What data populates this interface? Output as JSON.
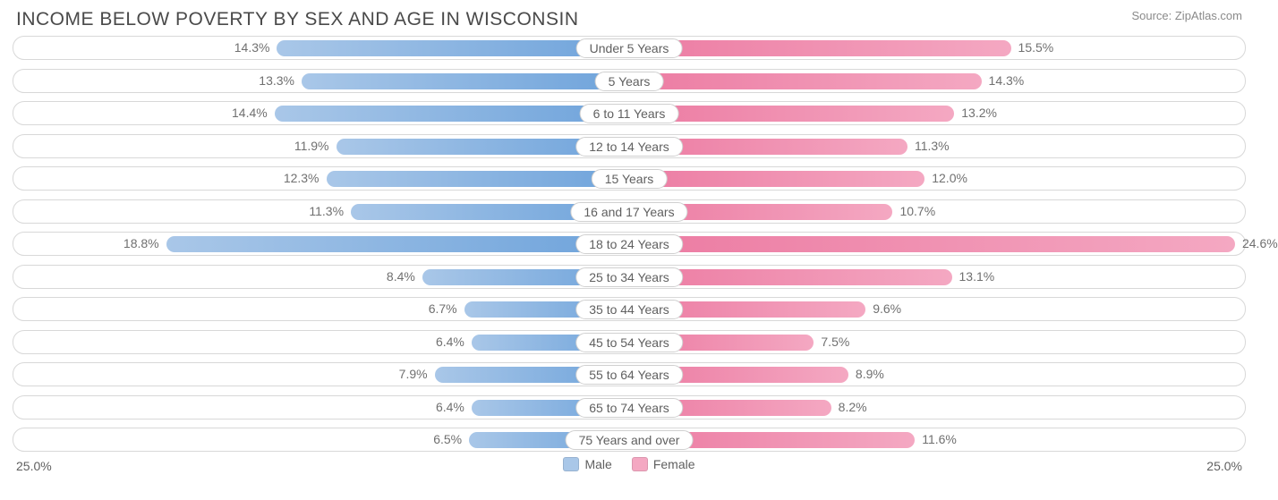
{
  "header": {
    "title": "INCOME BELOW POVERTY BY SEX AND AGE IN WISCONSIN",
    "source_prefix": "Source: ",
    "source_name": "ZipAtlas.com"
  },
  "chart": {
    "type": "diverging-bar",
    "axis_max": 25.0,
    "axis_label_left": "25.0%",
    "axis_label_right": "25.0%",
    "colors": {
      "male_strong": "#6ea3db",
      "male_light": "#a9c7e8",
      "female_strong": "#ec7ba2",
      "female_light": "#f4a8c2",
      "row_border": "#d8d8d8",
      "text": "#606060",
      "text_muted": "#707070",
      "background": "#ffffff"
    },
    "legend": {
      "male_label": "Male",
      "female_label": "Female"
    },
    "rows": [
      {
        "label": "Under 5 Years",
        "male": 14.3,
        "female": 15.5,
        "male_pct": "14.3%",
        "female_pct": "15.5%"
      },
      {
        "label": "5 Years",
        "male": 13.3,
        "female": 14.3,
        "male_pct": "13.3%",
        "female_pct": "14.3%"
      },
      {
        "label": "6 to 11 Years",
        "male": 14.4,
        "female": 13.2,
        "male_pct": "14.4%",
        "female_pct": "13.2%"
      },
      {
        "label": "12 to 14 Years",
        "male": 11.9,
        "female": 11.3,
        "male_pct": "11.9%",
        "female_pct": "11.3%"
      },
      {
        "label": "15 Years",
        "male": 12.3,
        "female": 12.0,
        "male_pct": "12.3%",
        "female_pct": "12.0%"
      },
      {
        "label": "16 and 17 Years",
        "male": 11.3,
        "female": 10.7,
        "male_pct": "11.3%",
        "female_pct": "10.7%"
      },
      {
        "label": "18 to 24 Years",
        "male": 18.8,
        "female": 24.6,
        "male_pct": "18.8%",
        "female_pct": "24.6%"
      },
      {
        "label": "25 to 34 Years",
        "male": 8.4,
        "female": 13.1,
        "male_pct": "8.4%",
        "female_pct": "13.1%"
      },
      {
        "label": "35 to 44 Years",
        "male": 6.7,
        "female": 9.6,
        "male_pct": "6.7%",
        "female_pct": "9.6%"
      },
      {
        "label": "45 to 54 Years",
        "male": 6.4,
        "female": 7.5,
        "male_pct": "6.4%",
        "female_pct": "7.5%"
      },
      {
        "label": "55 to 64 Years",
        "male": 7.9,
        "female": 8.9,
        "male_pct": "7.9%",
        "female_pct": "8.9%"
      },
      {
        "label": "65 to 74 Years",
        "male": 6.4,
        "female": 8.2,
        "male_pct": "6.4%",
        "female_pct": "8.2%"
      },
      {
        "label": "75 Years and over",
        "male": 6.5,
        "female": 11.6,
        "male_pct": "6.5%",
        "female_pct": "11.6%"
      }
    ]
  }
}
